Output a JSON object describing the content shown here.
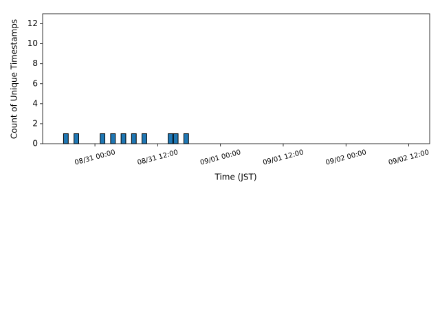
{
  "chart_data": {
    "type": "bar",
    "x_label": "Time (JST)",
    "y_label": "Count of Unique Timestamps",
    "x": [
      "08/30 18:00",
      "08/30 20:00",
      "08/31 01:00",
      "08/31 03:00",
      "08/31 05:00",
      "08/31 07:00",
      "08/31 09:00",
      "08/31 14:00",
      "08/31 15:00",
      "08/31 17:00"
    ],
    "values": [
      1,
      1,
      1,
      1,
      1,
      1,
      1,
      1,
      1,
      1
    ],
    "color": "#1f77b4",
    "edgecolor": "#000000",
    "xlim": [
      "08/30 14:00",
      "09/02 16:00"
    ],
    "xticks": [
      "08/31 00:00",
      "08/31 12:00",
      "09/01 00:00",
      "09/01 12:00",
      "09/02 00:00",
      "09/02 12:00"
    ],
    "ylim": [
      0,
      13
    ],
    "yticks": [
      0,
      2,
      4,
      6,
      8,
      10,
      12
    ]
  }
}
